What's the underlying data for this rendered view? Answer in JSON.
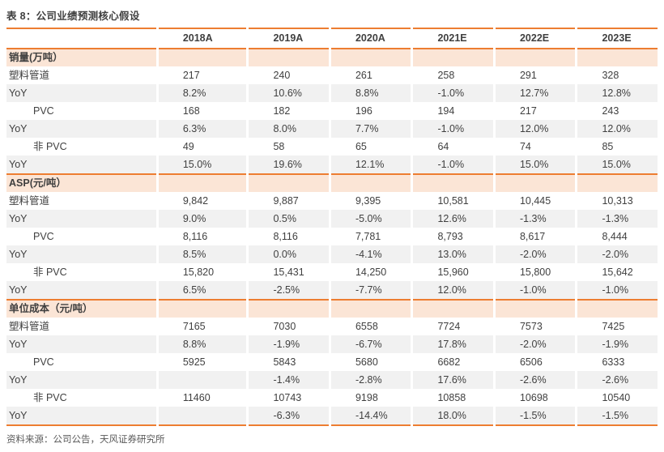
{
  "title": "表 8：公司业绩预测核心假设",
  "footer": "资料来源：公司公告，天风证券研究所",
  "accent_color": "#ed7d31",
  "section_bg_color": "#fbe5d6",
  "shade_row_color": "#f1f1f1",
  "chart_data": {
    "type": "table",
    "title": "表 8：公司业绩预测核心假设",
    "columns": [
      "2018A",
      "2019A",
      "2020A",
      "2021E",
      "2022E",
      "2023E"
    ],
    "sections": [
      {
        "header": "销量(万吨）",
        "rows": [
          {
            "label": "塑料管道",
            "indent": false,
            "shade": false,
            "values": [
              "217",
              "240",
              "261",
              "258",
              "291",
              "328"
            ]
          },
          {
            "label": "YoY",
            "indent": false,
            "shade": true,
            "values": [
              "8.2%",
              "10.6%",
              "8.8%",
              "-1.0%",
              "12.7%",
              "12.8%"
            ]
          },
          {
            "label": "PVC",
            "indent": true,
            "shade": false,
            "values": [
              "168",
              "182",
              "196",
              "194",
              "217",
              "243"
            ]
          },
          {
            "label": "YoY",
            "indent": false,
            "shade": true,
            "values": [
              "6.3%",
              "8.0%",
              "7.7%",
              "-1.0%",
              "12.0%",
              "12.0%"
            ]
          },
          {
            "label": "非 PVC",
            "indent": true,
            "shade": false,
            "values": [
              "49",
              "58",
              "65",
              "64",
              "74",
              "85"
            ]
          },
          {
            "label": "YoY",
            "indent": false,
            "shade": true,
            "values": [
              "15.0%",
              "19.6%",
              "12.1%",
              "-1.0%",
              "15.0%",
              "15.0%"
            ]
          }
        ]
      },
      {
        "header": "ASP(元/吨）",
        "rows": [
          {
            "label": "塑料管道",
            "indent": false,
            "shade": false,
            "values": [
              "9,842",
              "9,887",
              "9,395",
              "10,581",
              "10,445",
              "10,313"
            ]
          },
          {
            "label": "YoY",
            "indent": false,
            "shade": true,
            "values": [
              "9.0%",
              "0.5%",
              "-5.0%",
              "12.6%",
              "-1.3%",
              "-1.3%"
            ]
          },
          {
            "label": "PVC",
            "indent": true,
            "shade": false,
            "values": [
              "8,116",
              "8,116",
              "7,781",
              "8,793",
              "8,617",
              "8,444"
            ]
          },
          {
            "label": "YoY",
            "indent": false,
            "shade": true,
            "values": [
              "8.5%",
              "0.0%",
              "-4.1%",
              "13.0%",
              "-2.0%",
              "-2.0%"
            ]
          },
          {
            "label": "非 PVC",
            "indent": true,
            "shade": false,
            "values": [
              "15,820",
              "15,431",
              "14,250",
              "15,960",
              "15,800",
              "15,642"
            ]
          },
          {
            "label": "YoY",
            "indent": false,
            "shade": true,
            "values": [
              "6.5%",
              "-2.5%",
              "-7.7%",
              "12.0%",
              "-1.0%",
              "-1.0%"
            ]
          }
        ]
      },
      {
        "header": "单位成本（元/吨）",
        "rows": [
          {
            "label": "塑料管道",
            "indent": false,
            "shade": false,
            "values": [
              "7165",
              "7030",
              "6558",
              "7724",
              "7573",
              "7425"
            ]
          },
          {
            "label": "YoY",
            "indent": false,
            "shade": true,
            "values": [
              "8.8%",
              "-1.9%",
              "-6.7%",
              "17.8%",
              "-2.0%",
              "-1.9%"
            ]
          },
          {
            "label": "PVC",
            "indent": true,
            "shade": false,
            "values": [
              "5925",
              "5843",
              "5680",
              "6682",
              "6506",
              "6333"
            ]
          },
          {
            "label": "YoY",
            "indent": false,
            "shade": true,
            "values": [
              "",
              "-1.4%",
              "-2.8%",
              "17.6%",
              "-2.6%",
              "-2.6%"
            ]
          },
          {
            "label": "非 PVC",
            "indent": true,
            "shade": false,
            "values": [
              "11460",
              "10743",
              "9198",
              "10858",
              "10698",
              "10540"
            ]
          },
          {
            "label": "YoY",
            "indent": false,
            "shade": true,
            "values": [
              "",
              "-6.3%",
              "-14.4%",
              "18.0%",
              "-1.5%",
              "-1.5%"
            ]
          }
        ]
      }
    ]
  }
}
